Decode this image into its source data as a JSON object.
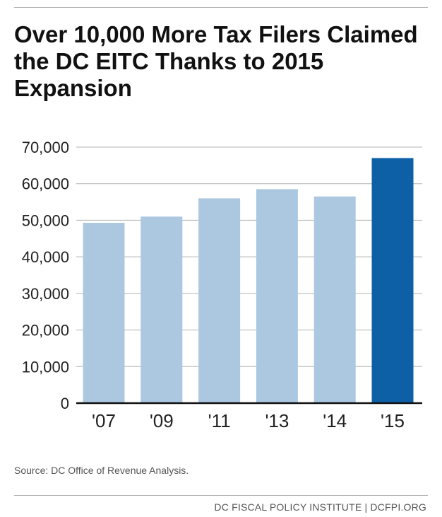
{
  "colors": {
    "bar_light": "#abc8e0",
    "bar_highlight": "#0d5fa6",
    "grid": "#b3b3b3",
    "axis": "#111111"
  },
  "chart_data": {
    "type": "bar",
    "title": "Over 10,000 More Tax Filers Claimed the DC EITC Thanks to 2015 Expansion",
    "xlabel": "",
    "ylabel": "",
    "categories": [
      "'07",
      "'09",
      "'11",
      "'13",
      "'14",
      "'15"
    ],
    "values": [
      49300,
      51000,
      56000,
      58500,
      56500,
      67000
    ],
    "highlight_index": 5,
    "ylim": [
      0,
      70000
    ],
    "yticks": [
      0,
      10000,
      20000,
      30000,
      40000,
      50000,
      60000,
      70000
    ],
    "ytick_labels": [
      "0",
      "10,000",
      "20,000",
      "30,000",
      "40,000",
      "50,000",
      "60,000",
      "70,000"
    ],
    "grid": true,
    "legend": "none"
  },
  "source": "Source: DC Office of Revenue Analysis.",
  "footer": "DC FISCAL POLICY INSTITUTE | DCFPI.ORG"
}
